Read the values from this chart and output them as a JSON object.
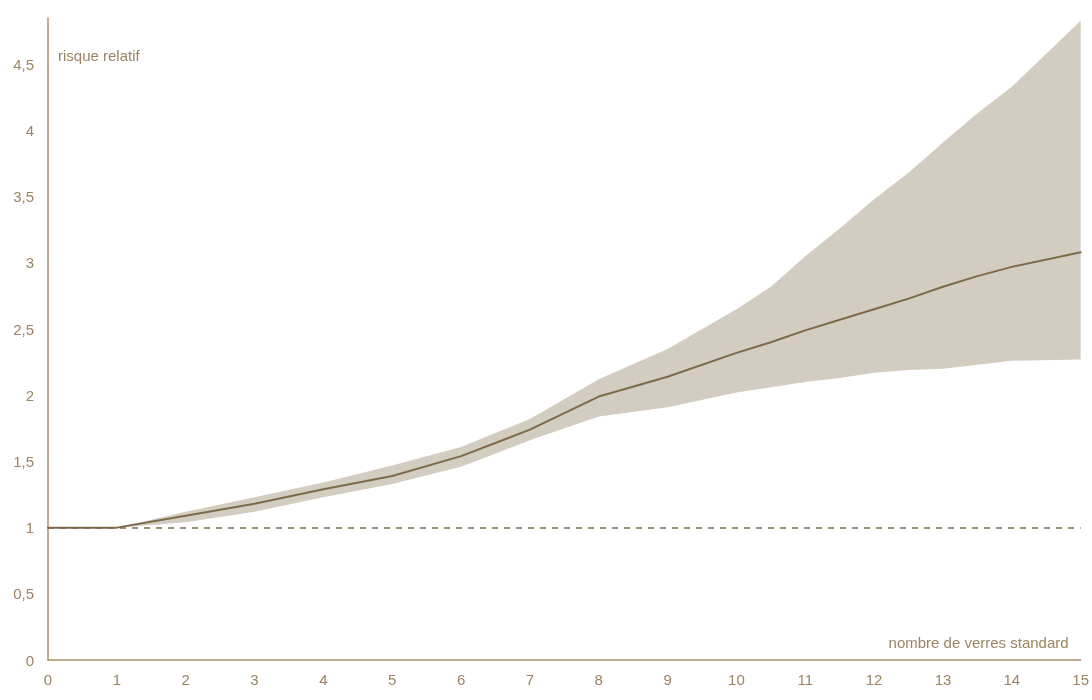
{
  "chart_data": {
    "type": "line",
    "xlabel": "nombre de verres standard",
    "ylabel": "risque relatif",
    "x": [
      0,
      1,
      2,
      3,
      4,
      5,
      6,
      7,
      8,
      9,
      10,
      10.5,
      11,
      11.5,
      12,
      12.5,
      13,
      13.5,
      14,
      15
    ],
    "series": [
      {
        "color": "#7d6a4a",
        "values": [
          1,
          1,
          1.09,
          1.18,
          1.29,
          1.39,
          1.54,
          1.74,
          1.99,
          2.14,
          2.32,
          2.4,
          2.49,
          2.57,
          2.65,
          2.73,
          2.82,
          2.9,
          2.97,
          3.08
        ],
        "lower": [
          1,
          1,
          1.04,
          1.12,
          1.23,
          1.33,
          1.46,
          1.66,
          1.84,
          1.91,
          2.02,
          2.06,
          2.1,
          2.13,
          2.17,
          2.19,
          2.2,
          2.23,
          2.26,
          2.27
        ],
        "upper": [
          1,
          1,
          1.12,
          1.23,
          1.34,
          1.47,
          1.61,
          1.82,
          2.12,
          2.35,
          2.65,
          2.82,
          3.05,
          3.26,
          3.48,
          3.68,
          3.91,
          4.13,
          4.33,
          4.83
        ]
      }
    ],
    "xlim": [
      0,
      15
    ],
    "xticks": [
      0,
      1,
      2,
      3,
      4,
      5,
      6,
      7,
      8,
      9,
      10,
      11,
      12,
      13,
      14,
      15
    ],
    "ylim": [
      0,
      4.85
    ],
    "yticks": [
      0,
      {
        "value": 0.5,
        "label": "0,5"
      },
      1,
      {
        "value": 1.5,
        "label": "1,5"
      },
      2,
      {
        "value": 2.5,
        "label": "2,5"
      },
      3,
      {
        "value": 3.5,
        "label": "3,5"
      },
      4,
      {
        "value": 4.5,
        "label": "4,5"
      }
    ],
    "ref_lines": [
      {
        "axis": "y",
        "value": 1,
        "color": "#7d6a4a",
        "line_style": "dashed"
      }
    ],
    "grid": false,
    "marker": "none",
    "line_style": "solid"
  }
}
